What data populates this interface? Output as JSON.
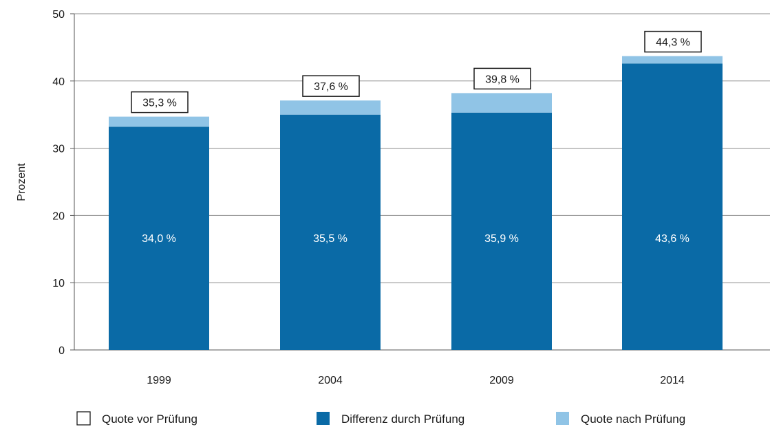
{
  "colors": {
    "dark": "#0a6aa6",
    "light": "#90c4e6",
    "grid": "#8c8c8c",
    "axis": "#555555"
  },
  "chart_data": {
    "type": "bar",
    "stacked": true,
    "title": "",
    "xlabel": "",
    "ylabel": "Prozent",
    "ylim": [
      0,
      50
    ],
    "yticks": [
      0,
      10,
      20,
      30,
      40,
      50
    ],
    "grid": true,
    "legend_position": "bottom",
    "categories": [
      "1999",
      "2004",
      "2009",
      "2014"
    ],
    "series": [
      {
        "name": "Differenz durch Prüfung",
        "values": [
          33.2,
          35.0,
          35.3,
          42.6
        ],
        "color": "#0a6aa6"
      },
      {
        "name": "Quote nach Prüfung",
        "values": [
          1.5,
          2.1,
          2.9,
          1.1
        ],
        "color": "#90c4e6"
      }
    ],
    "inner_labels": [
      "34,0 %",
      "35,5 %",
      "35,9 %",
      "43,6 %"
    ],
    "box_labels": [
      "35,3 %",
      "37,6 %",
      "39,8 %",
      "44,3 %"
    ],
    "legend": [
      {
        "name": "Quote vor Prüfung",
        "swatch": "outline"
      },
      {
        "name": "Differenz durch Prüfung",
        "swatch": "#0a6aa6"
      },
      {
        "name": "Quote nach Prüfung",
        "swatch": "#90c4e6"
      }
    ]
  }
}
